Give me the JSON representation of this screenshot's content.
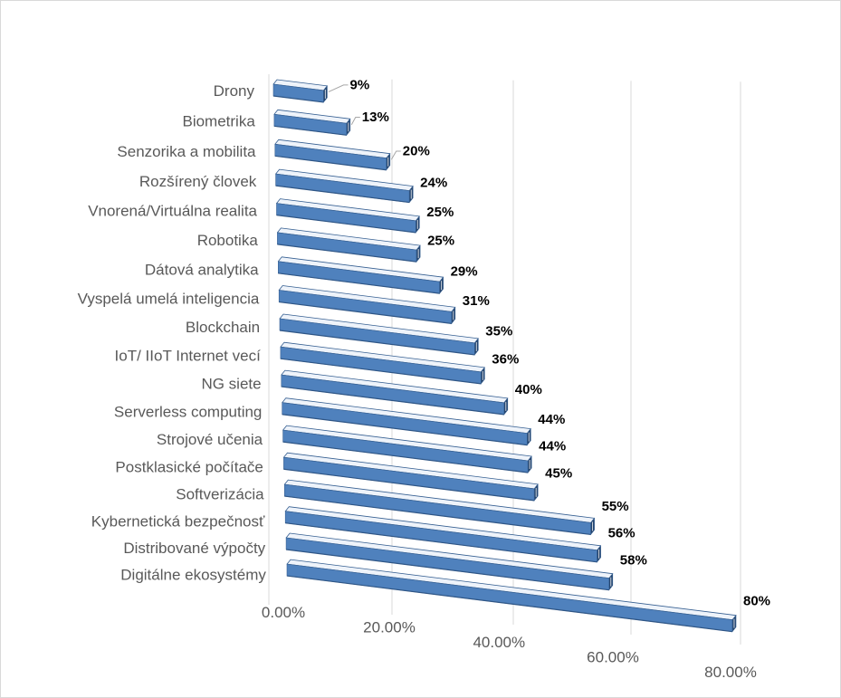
{
  "chart_data": {
    "type": "bar",
    "orientation": "horizontal",
    "three_d": true,
    "categories": [
      "Drony",
      "Biometrika",
      "Senzorika a mobilita",
      "Rozšírený človek",
      "Vnorená/Virtuálna realita",
      "Robotika",
      "Dátová analytika",
      "Vyspelá umelá inteligencia",
      "Blockchain",
      "IoT/ IIoT Internet vecí",
      "NG siete",
      "Serverless computing",
      "Strojové učenia",
      "Postklasické počítače",
      "Softverizácia",
      "Kybernetická bezpečnosť",
      "Distribované výpočty",
      "Digitálne ekosystémy"
    ],
    "values": [
      9,
      13,
      20,
      24,
      25,
      25,
      29,
      31,
      35,
      36,
      40,
      44,
      44,
      45,
      55,
      56,
      58,
      80
    ],
    "data_labels": [
      "9%",
      "13%",
      "20%",
      "24%",
      "25%",
      "25%",
      "29%",
      "31%",
      "35%",
      "36%",
      "40%",
      "44%",
      "44%",
      "45%",
      "55%",
      "56%",
      "58%",
      "80%"
    ],
    "xlim": [
      0,
      80
    ],
    "xticks": [
      0,
      20,
      40,
      60,
      80
    ],
    "xtick_labels": [
      "0.00%",
      "20.00%",
      "40.00%",
      "60.00%",
      "80.00%"
    ],
    "grid": true,
    "legend": "none",
    "colors": {
      "background": "#ffffff",
      "border": "#d9d9d9",
      "grid": "#d9d9d9",
      "bar_front": "#4f81bd",
      "bar_bottom_edge": "#2f5686",
      "bar_top": "#eef3fa",
      "bar_end": "#24446d",
      "bar_edge": "#365f91",
      "bar_end_highlight": "#ffffff",
      "axis_text": "#595959",
      "data_label_text": "#000000",
      "leader_line": "#a6a6a6"
    }
  }
}
